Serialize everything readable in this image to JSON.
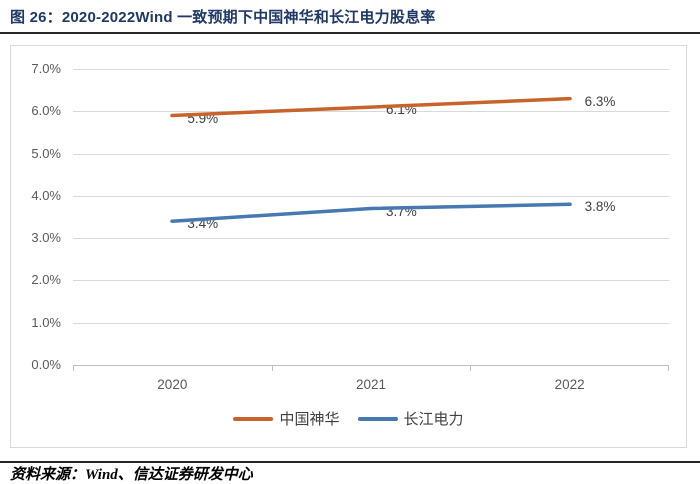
{
  "figure": {
    "title": "图 26：2020-2022Wind 一致预期下中国神华和长江电力股息率",
    "source": "资料来源：Wind、信达证券研发中心"
  },
  "colors": {
    "title_navy": "#1F3864",
    "divider_dark": "#262626",
    "gridline": "#D9D9D9",
    "axis_line": "#BFBFBF",
    "axis_text": "#595959",
    "data_label_text": "#404040",
    "shenhua_orange": "#C8632C",
    "changjiang_blue": "#4678B2"
  },
  "chart_data": {
    "type": "line",
    "title": "2020-2022Wind 一致预期下中国神华和长江电力股息率",
    "categories": [
      "2020",
      "2021",
      "2022"
    ],
    "series": [
      {
        "name": "中国神华",
        "color": "#C8632C",
        "values": [
          5.9,
          6.1,
          6.3
        ],
        "point_labels": [
          "5.9%",
          "6.1%",
          "6.3%"
        ]
      },
      {
        "name": "长江电力",
        "color": "#4678B2",
        "values": [
          3.4,
          3.7,
          3.8
        ],
        "point_labels": [
          "3.4%",
          "3.7%",
          "3.8%"
        ]
      }
    ],
    "y_ticks": [
      "7.0%",
      "6.0%",
      "5.0%",
      "4.0%",
      "3.0%",
      "2.0%",
      "1.0%",
      "0.0%"
    ],
    "ylim": [
      0,
      7
    ],
    "xlabel": "",
    "ylabel": "",
    "grid": true,
    "legend_position": "bottom",
    "unit": "percent"
  }
}
